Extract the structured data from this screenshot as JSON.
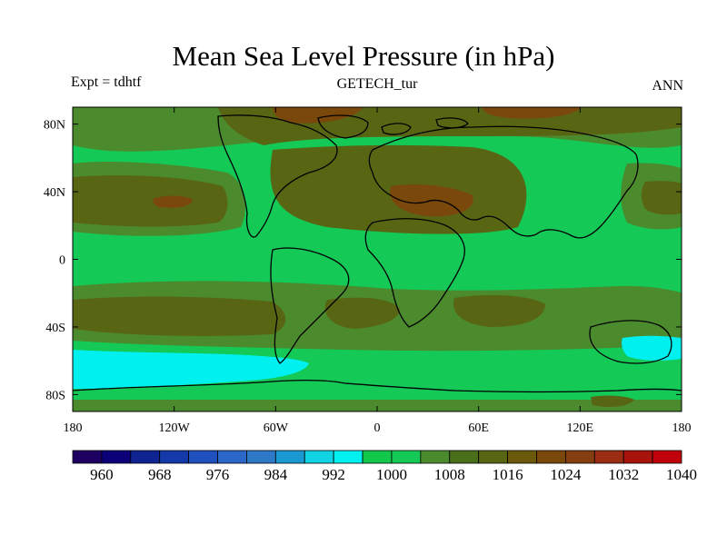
{
  "title": "Mean Sea Level Pressure (in hPa)",
  "left_string": "Expt = tdhtf",
  "center_string": "GETECH_tur",
  "right_string": "ANN",
  "lat_ticks": [
    {
      "value": 80,
      "label": "80N"
    },
    {
      "value": 40,
      "label": "40N"
    },
    {
      "value": 0,
      "label": "0"
    },
    {
      "value": -40,
      "label": "40S"
    },
    {
      "value": -80,
      "label": "80S"
    }
  ],
  "lon_ticks": [
    {
      "value": -180,
      "label": "180"
    },
    {
      "value": -120,
      "label": "120W"
    },
    {
      "value": -60,
      "label": "60W"
    },
    {
      "value": 0,
      "label": "0"
    },
    {
      "value": 60,
      "label": "60E"
    },
    {
      "value": 120,
      "label": "120E"
    },
    {
      "value": 180,
      "label": "180"
    }
  ],
  "colorbar": {
    "colors": [
      "#1e0063",
      "#0c0078",
      "#0f2391",
      "#1439a8",
      "#1e50be",
      "#2b66c9",
      "#2e78c8",
      "#1a98d2",
      "#11d3e3",
      "#00f0f0",
      "#12c84a",
      "#14c956",
      "#4b8b2e",
      "#4a6f1a",
      "#586614",
      "#6b5a0b",
      "#7a480a",
      "#843e10",
      "#9b2d12",
      "#a8140c",
      "#c0000b"
    ],
    "labels": [
      "960",
      "968",
      "976",
      "984",
      "992",
      "1000",
      "1008",
      "1016",
      "1024",
      "1032",
      "1040"
    ],
    "label_boundaries": [
      1,
      3,
      5,
      7,
      9,
      11,
      13,
      15,
      17,
      19,
      21
    ]
  },
  "map": {
    "ocean_base": "#14c956",
    "fill_colors": {
      "high_dark": "#7a480a",
      "high_mid": "#586614",
      "high_light": "#4b8b2e",
      "low": "#00f0f0"
    },
    "coastline_color": "#000000"
  }
}
